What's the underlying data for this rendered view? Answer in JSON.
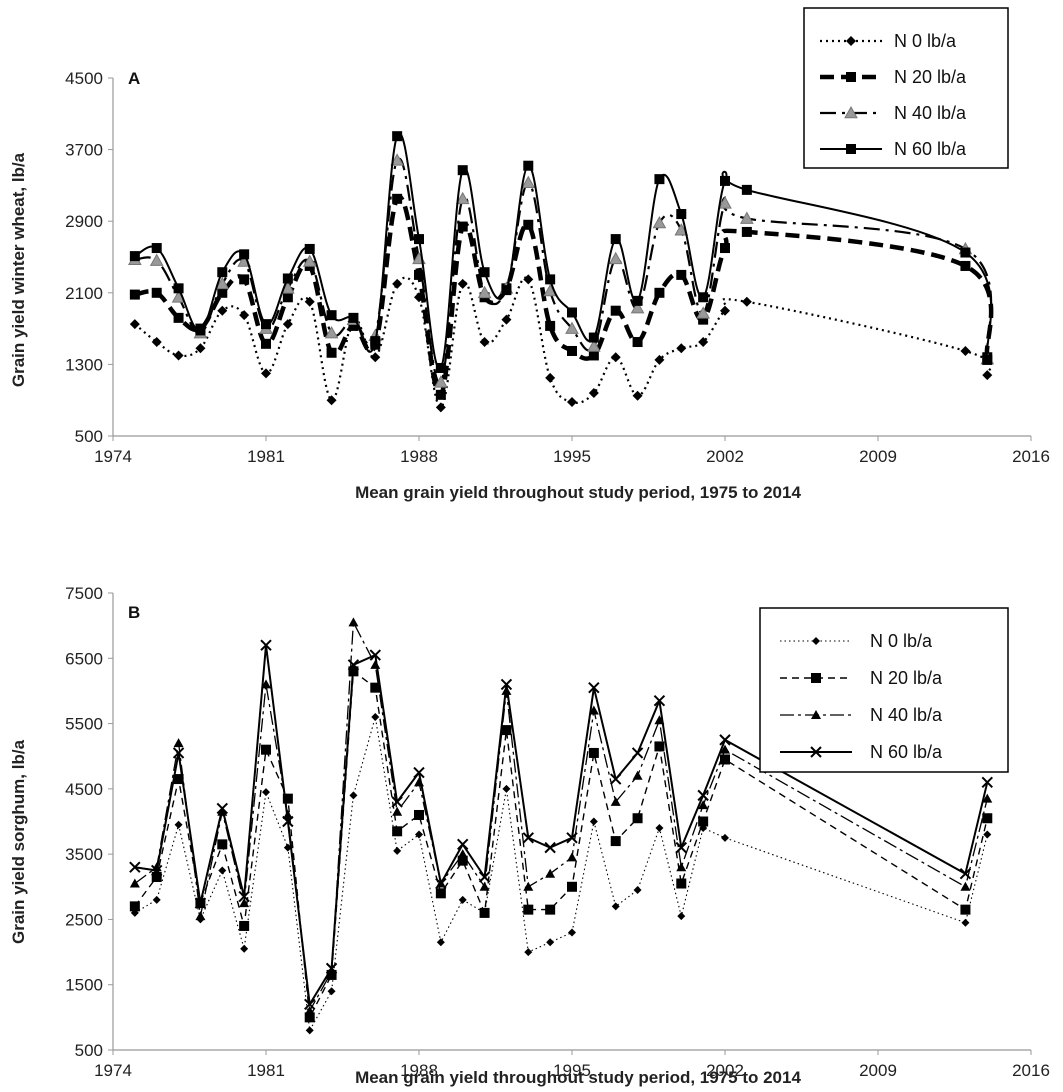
{
  "chart_data": [
    {
      "type": "line",
      "panel_label": "A",
      "xlabel": "Mean grain yield throughout study period, 1975 to 2014",
      "ylabel": "Grain yield winter wheat, lb/a",
      "xlim": [
        1974,
        2016
      ],
      "ylim": [
        500,
        4500
      ],
      "xticks": [
        1974,
        1981,
        1988,
        1995,
        2002,
        2009,
        2016
      ],
      "yticks": [
        500,
        1300,
        2100,
        2900,
        3700,
        4500
      ],
      "grid": false,
      "legend_position": "top-right",
      "x": [
        1975,
        1976,
        1977,
        1978,
        1979,
        1980,
        1981,
        1982,
        1983,
        1984,
        1985,
        1986,
        1987,
        1988,
        1989,
        1990,
        1991,
        1992,
        1993,
        1994,
        1995,
        1996,
        1997,
        1998,
        1999,
        2000,
        2001,
        2002,
        2003,
        2013,
        2014
      ],
      "series": [
        {
          "name": "N 0 lb/a",
          "style": "dotted-diamond",
          "color": "#000000",
          "values": [
            1750,
            1550,
            1400,
            1480,
            1900,
            1850,
            1200,
            1750,
            2000,
            900,
            1800,
            1380,
            2200,
            2050,
            820,
            2200,
            1550,
            1800,
            2250,
            1150,
            880,
            980,
            1380,
            950,
            1350,
            1480,
            1550,
            1900,
            2000,
            1450,
            1180
          ]
        },
        {
          "name": "N 20 lb/a",
          "style": "heavy-dash-square",
          "color": "#000000",
          "values": [
            2080,
            2100,
            1820,
            1700,
            2100,
            2250,
            1530,
            2050,
            2400,
            1430,
            1730,
            1520,
            3150,
            2300,
            960,
            2840,
            2050,
            2150,
            2860,
            1730,
            1450,
            1400,
            1900,
            1550,
            2100,
            2300,
            1800,
            2600,
            2780,
            2400,
            1380
          ]
        },
        {
          "name": "N 40 lb/a",
          "style": "dash-dot-triangle",
          "color": "#888888",
          "values": [
            2470,
            2460,
            2050,
            1650,
            2200,
            2450,
            1700,
            2150,
            2450,
            1650,
            1800,
            1620,
            3580,
            2480,
            1100,
            3150,
            2100,
            2150,
            3330,
            2120,
            1700,
            1500,
            2480,
            1930,
            2880,
            2800,
            1870,
            3100,
            2930,
            2590,
            1360
          ]
        },
        {
          "name": "N 60 lb/a",
          "style": "solid-square",
          "color": "#000000",
          "values": [
            2510,
            2600,
            2150,
            1680,
            2330,
            2530,
            1750,
            2260,
            2590,
            1850,
            1820,
            1560,
            3850,
            2700,
            1260,
            3470,
            2330,
            2130,
            3520,
            2250,
            1880,
            1600,
            2700,
            2010,
            3370,
            2980,
            2050,
            3350,
            3250,
            2550,
            1350
          ]
        }
      ]
    },
    {
      "type": "line",
      "panel_label": "B",
      "xlabel": "Mean grain yield throughout study period, 1975 to 2014",
      "ylabel": "Grain yield sorghum, lb/a",
      "xlim": [
        1974,
        2016
      ],
      "ylim": [
        500,
        7500
      ],
      "xticks": [
        1974,
        1981,
        1988,
        1995,
        2002,
        2009,
        2016
      ],
      "yticks": [
        500,
        1500,
        2500,
        3500,
        4500,
        5500,
        6500,
        7500
      ],
      "grid": false,
      "legend_position": "top-right",
      "x": [
        1975,
        1976,
        1977,
        1978,
        1979,
        1980,
        1981,
        1982,
        1983,
        1984,
        1985,
        1986,
        1987,
        1988,
        1989,
        1990,
        1991,
        1992,
        1993,
        1994,
        1995,
        1996,
        1997,
        1998,
        1999,
        2000,
        2001,
        2002,
        2013,
        2014
      ],
      "series": [
        {
          "name": "N 0 lb/a",
          "style": "thin-dotted-diamond",
          "color": "#000000",
          "values": [
            2600,
            2800,
            3950,
            2500,
            3250,
            2050,
            4450,
            3600,
            800,
            1400,
            4400,
            5600,
            3550,
            3800,
            2150,
            2800,
            2600,
            4500,
            2000,
            2150,
            2300,
            4000,
            2700,
            2950,
            3900,
            2550,
            3900,
            3750,
            2450,
            3800
          ]
        },
        {
          "name": "N 20 lb/a",
          "style": "dashed-square",
          "color": "#000000",
          "values": [
            2700,
            3150,
            4650,
            2750,
            3650,
            2400,
            5100,
            4350,
            1000,
            1650,
            6300,
            6050,
            3850,
            4100,
            2900,
            3400,
            2600,
            5400,
            2650,
            2650,
            3000,
            5050,
            3700,
            4050,
            5150,
            3050,
            4000,
            4950,
            2650,
            4050
          ]
        },
        {
          "name": "N 40 lb/a",
          "style": "long-dash-triangle",
          "color": "#000000",
          "values": [
            3050,
            3300,
            5200,
            2550,
            4150,
            2750,
            6100,
            4100,
            1100,
            1700,
            7050,
            6400,
            4150,
            4600,
            3050,
            3500,
            3000,
            6000,
            3000,
            3200,
            3450,
            5700,
            4300,
            4700,
            5550,
            3300,
            4250,
            5100,
            3000,
            4350
          ]
        },
        {
          "name": "N 60 lb/a",
          "style": "solid-x",
          "color": "#000000",
          "values": [
            3300,
            3250,
            5050,
            2750,
            4200,
            2850,
            6700,
            4000,
            1200,
            1750,
            6400,
            6550,
            4300,
            4750,
            3050,
            3650,
            3150,
            6100,
            3750,
            3600,
            3750,
            6050,
            4650,
            5050,
            5850,
            3600,
            4400,
            5250,
            3200,
            4600
          ]
        }
      ]
    }
  ]
}
